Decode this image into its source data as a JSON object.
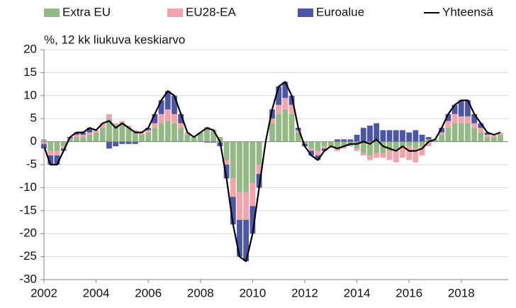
{
  "chart_data": {
    "type": "bar",
    "stacked": true,
    "subtitle": "%, 12 kk liukuva keskiarvo",
    "x": [
      2002,
      2002.25,
      2002.5,
      2002.75,
      2003,
      2003.25,
      2003.5,
      2003.75,
      2004,
      2004.25,
      2004.5,
      2004.75,
      2005,
      2005.25,
      2005.5,
      2005.75,
      2006,
      2006.25,
      2006.5,
      2006.75,
      2007,
      2007.25,
      2007.5,
      2007.75,
      2008,
      2008.25,
      2008.5,
      2008.75,
      2009,
      2009.25,
      2009.5,
      2009.75,
      2010,
      2010.25,
      2010.5,
      2010.75,
      2011,
      2011.25,
      2011.5,
      2011.75,
      2012,
      2012.25,
      2012.5,
      2012.75,
      2013,
      2013.25,
      2013.5,
      2013.75,
      2014,
      2014.25,
      2014.5,
      2014.75,
      2015,
      2015.25,
      2015.5,
      2015.75,
      2016,
      2016.25,
      2016.5,
      2016.75,
      2017,
      2017.25,
      2017.5,
      2017.75,
      2018,
      2018.25,
      2018.5,
      2018.75,
      2019,
      2019.25,
      2019.5
    ],
    "series": [
      {
        "name": "Extra EU",
        "color": "#93b985",
        "values": [
          0.5,
          -2,
          -2,
          -1,
          0.5,
          1,
          1,
          1.5,
          2,
          3,
          5,
          3.5,
          4,
          3,
          2,
          1.5,
          2,
          3,
          4,
          4.5,
          4,
          3,
          1.5,
          1,
          2,
          3,
          2.5,
          1,
          -4,
          -8,
          -11,
          -11,
          -9,
          -5,
          0,
          4,
          6,
          7,
          6,
          2,
          -0.5,
          -1.5,
          -2,
          -1,
          -1,
          -1.5,
          -1,
          -1,
          -1.5,
          -2.5,
          -3,
          -2.5,
          -2.5,
          -2,
          -2,
          -1,
          -1,
          -1.5,
          -1,
          0.5,
          0.5,
          1.5,
          3,
          4,
          4,
          4,
          3,
          2,
          1,
          1,
          1.5
        ]
      },
      {
        "name": "EU28-EA",
        "color": "#f4a3a8",
        "values": [
          -0.5,
          -1,
          -1,
          -0.5,
          0.2,
          0.5,
          0.5,
          0.5,
          0.5,
          1,
          1,
          0.5,
          0.5,
          0.5,
          0.5,
          0.5,
          0.5,
          1,
          2,
          2.5,
          2,
          1,
          0.5,
          0,
          0,
          0.2,
          0.2,
          -0.2,
          -1,
          -4,
          -6,
          -6,
          -5,
          -2,
          0,
          1,
          2,
          2.5,
          2,
          0.5,
          0,
          -0.5,
          -1,
          -0.5,
          0,
          -0.5,
          -0.5,
          0,
          -0.5,
          -0.5,
          -1,
          -1,
          -1,
          -2,
          -2.5,
          -2.5,
          -3,
          -3,
          -2,
          -1,
          0,
          0.5,
          1.5,
          2,
          1.5,
          1.5,
          1,
          1,
          0.5,
          0.5,
          0.5
        ]
      },
      {
        "name": "Euroalue",
        "color": "#4c56a8",
        "values": [
          -1,
          -2,
          -2,
          -0.5,
          0.3,
          0.5,
          0.5,
          1,
          0,
          0,
          -1.5,
          -1,
          -0.5,
          -0.5,
          -0.5,
          0,
          0.5,
          2,
          3,
          4,
          4,
          2,
          0,
          0,
          0,
          -0.2,
          -0.2,
          -0.8,
          -3,
          -6,
          -8,
          -9,
          -6,
          -3,
          0,
          2,
          4,
          3.5,
          2,
          0.5,
          -0.5,
          -1,
          -1,
          -0.5,
          0,
          0.5,
          0.5,
          0.5,
          1.5,
          3,
          3.5,
          4,
          2.5,
          2.5,
          2.5,
          2.5,
          2,
          2.5,
          1.5,
          0.5,
          0,
          1,
          1.5,
          2,
          3.5,
          3.5,
          2,
          1,
          0.5,
          0,
          0
        ]
      },
      {
        "name": "Yhteensä",
        "color": "#000000",
        "type": "line",
        "values": [
          -1,
          -5,
          -5,
          -2,
          1,
          2,
          2,
          3,
          2.5,
          4,
          4.5,
          3,
          4,
          3,
          2,
          2,
          3,
          6,
          9,
          11,
          10,
          6,
          2,
          1,
          2,
          3,
          2.5,
          0,
          -8,
          -18,
          -25,
          -26,
          -20,
          -10,
          0,
          7,
          12,
          13,
          10,
          3,
          -1,
          -3,
          -4,
          -2,
          -1,
          -1.5,
          -1,
          -0.5,
          -0.5,
          0,
          -0.5,
          0.5,
          -1,
          -1.5,
          -2,
          -1,
          -2,
          -2,
          -1.5,
          0,
          0.5,
          3,
          6,
          8,
          9,
          9,
          6,
          4,
          2,
          1.5,
          2
        ]
      }
    ],
    "xlim": [
      2002,
      2019.8
    ],
    "xticks": [
      2002,
      2004,
      2006,
      2008,
      2010,
      2012,
      2014,
      2016,
      2018
    ],
    "ylim": [
      -30,
      20
    ],
    "yticks": [
      -30,
      -25,
      -20,
      -15,
      -10,
      -5,
      0,
      5,
      10,
      15,
      20
    ],
    "grid": true,
    "legend": "top"
  }
}
